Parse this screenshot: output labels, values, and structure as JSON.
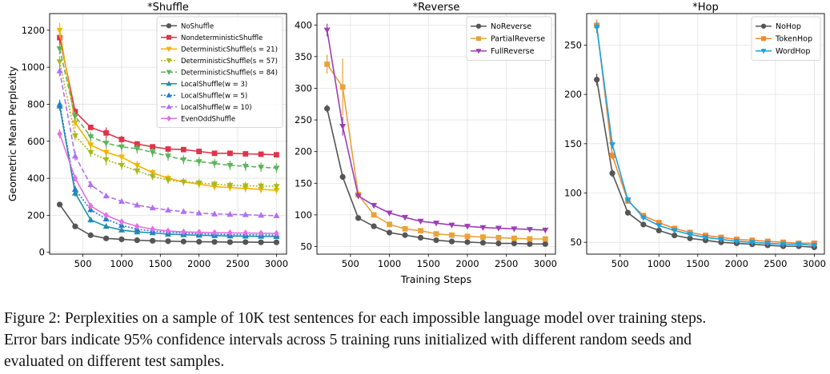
{
  "figure": {
    "xlabel": "Training Steps"
  },
  "caption": {
    "lines": [
      "Figure 2: Perplexities on a sample of 10K test sentences for each impossible language model over training steps.",
      "Error bars indicate 95% confidence intervals across 5 training runs initialized with different random seeds and",
      "evaluated on different test samples."
    ]
  },
  "chart_data": [
    {
      "type": "line",
      "title": "*Shuffle",
      "xlabel": "",
      "ylabel": "Geometric Mean Perplexity",
      "xlim": [
        70,
        3130
      ],
      "ylim": [
        -10,
        1290
      ],
      "xticks": [
        500,
        1000,
        1500,
        2000,
        2500,
        3000
      ],
      "yticks": [
        0,
        200,
        400,
        600,
        800,
        1000,
        1200
      ],
      "legend_position": "top-right",
      "x": [
        200,
        400,
        600,
        800,
        1000,
        1200,
        1400,
        1600,
        1800,
        2000,
        2200,
        2400,
        2600,
        2800,
        3000
      ],
      "series": [
        {
          "name": "NoShuffle",
          "color": "#555555",
          "marker": "circle",
          "dash": "",
          "values": [
            258,
            140,
            92,
            75,
            70,
            65,
            62,
            60,
            58,
            57,
            56,
            55,
            55,
            54,
            54
          ],
          "err": [
            8,
            5,
            4,
            3,
            3,
            3,
            2,
            2,
            2,
            2,
            2,
            2,
            2,
            2,
            2
          ]
        },
        {
          "name": "NondeterministicShuffle",
          "color": "#e0334b",
          "marker": "square",
          "dash": "",
          "values": [
            1160,
            760,
            675,
            645,
            610,
            585,
            570,
            558,
            555,
            545,
            535,
            535,
            532,
            530,
            527
          ],
          "err": [
            40,
            20,
            15,
            30,
            20,
            15,
            10,
            10,
            10,
            15,
            10,
            10,
            10,
            10,
            10
          ]
        },
        {
          "name": "DeterministicShuffle(s = 21)",
          "color": "#f4b400",
          "marker": "triangle-down",
          "dash": "",
          "values": [
            1200,
            700,
            580,
            540,
            515,
            470,
            430,
            400,
            380,
            368,
            355,
            350,
            345,
            340,
            335
          ],
          "err": [
            40,
            30,
            25,
            25,
            30,
            25,
            20,
            20,
            20,
            20,
            20,
            20,
            20,
            20,
            20
          ]
        },
        {
          "name": "DeterministicShuffle(s = 57)",
          "color": "#a8b820",
          "marker": "triangle-down",
          "dash": "2,2",
          "values": [
            1030,
            630,
            540,
            500,
            470,
            440,
            410,
            390,
            380,
            375,
            368,
            362,
            360,
            358,
            356
          ],
          "err": [
            30,
            25,
            25,
            30,
            25,
            20,
            20,
            20,
            20,
            20,
            20,
            20,
            20,
            20,
            20
          ]
        },
        {
          "name": "DeterministicShuffle(s = 84)",
          "color": "#5bb55a",
          "marker": "triangle-down",
          "dash": "6,3",
          "values": [
            1100,
            735,
            625,
            590,
            570,
            560,
            540,
            520,
            500,
            490,
            480,
            470,
            465,
            460,
            455
          ],
          "err": [
            30,
            25,
            25,
            25,
            25,
            25,
            25,
            25,
            25,
            25,
            25,
            25,
            25,
            25,
            25
          ]
        },
        {
          "name": "LocalShuffle(w = 3)",
          "color": "#1f8fa8",
          "marker": "triangle-up",
          "dash": "",
          "values": [
            790,
            320,
            175,
            140,
            120,
            110,
            105,
            98,
            95,
            92,
            90,
            88,
            87,
            86,
            85
          ],
          "err": [
            25,
            20,
            15,
            10,
            8,
            6,
            5,
            5,
            5,
            5,
            5,
            5,
            5,
            5,
            5
          ]
        },
        {
          "name": "LocalShuffle(w = 5)",
          "color": "#1f7fd0",
          "marker": "triangle-up",
          "dash": "2,2",
          "values": [
            800,
            340,
            230,
            180,
            145,
            125,
            115,
            108,
            104,
            100,
            98,
            96,
            95,
            94,
            93
          ],
          "err": [
            25,
            20,
            15,
            10,
            8,
            6,
            5,
            5,
            5,
            5,
            5,
            5,
            5,
            5,
            5
          ]
        },
        {
          "name": "LocalShuffle(w = 10)",
          "color": "#b071f0",
          "marker": "triangle-up",
          "dash": "6,3",
          "values": [
            980,
            520,
            365,
            305,
            275,
            255,
            240,
            228,
            220,
            212,
            207,
            205,
            203,
            200,
            198
          ],
          "err": [
            30,
            25,
            20,
            15,
            12,
            10,
            8,
            8,
            8,
            8,
            8,
            8,
            8,
            8,
            8
          ]
        },
        {
          "name": "EvenOddShuffle",
          "color": "#e36fe3",
          "marker": "diamond",
          "dash": "",
          "values": [
            640,
            400,
            250,
            200,
            165,
            140,
            125,
            115,
            110,
            108,
            106,
            105,
            104,
            103,
            102
          ],
          "err": [
            25,
            20,
            15,
            10,
            8,
            6,
            5,
            5,
            5,
            5,
            5,
            5,
            5,
            5,
            5
          ]
        }
      ]
    },
    {
      "type": "line",
      "title": "*Reverse",
      "xlabel": "Training Steps",
      "ylabel": "",
      "xlim": [
        70,
        3130
      ],
      "ylim": [
        38,
        418
      ],
      "xticks": [
        500,
        1000,
        1500,
        2000,
        2500,
        3000
      ],
      "yticks": [
        50,
        100,
        150,
        200,
        250,
        300,
        350,
        400
      ],
      "legend_position": "top-right",
      "x": [
        200,
        400,
        600,
        800,
        1000,
        1200,
        1400,
        1600,
        1800,
        2000,
        2200,
        2400,
        2600,
        2800,
        3000
      ],
      "series": [
        {
          "name": "NoReverse",
          "color": "#555555",
          "marker": "circle",
          "dash": "",
          "values": [
            268,
            160,
            95,
            82,
            72,
            68,
            64,
            60,
            58,
            57,
            56,
            55,
            55,
            54,
            54
          ],
          "err": [
            6,
            5,
            3,
            3,
            2,
            2,
            2,
            2,
            2,
            2,
            2,
            2,
            2,
            2,
            2
          ]
        },
        {
          "name": "PartialReverse",
          "color": "#eaa23a",
          "marker": "square",
          "dash": "",
          "values": [
            338,
            302,
            132,
            100,
            85,
            78,
            75,
            70,
            68,
            66,
            65,
            64,
            63,
            62,
            62
          ],
          "err": [
            15,
            45,
            6,
            4,
            3,
            3,
            3,
            3,
            3,
            3,
            3,
            3,
            3,
            3,
            3
          ]
        },
        {
          "name": "FullReverse",
          "color": "#9c3fb5",
          "marker": "triangle-down",
          "dash": "",
          "values": [
            392,
            240,
            130,
            115,
            103,
            96,
            90,
            87,
            84,
            82,
            80,
            79,
            78,
            77,
            76
          ],
          "err": [
            10,
            15,
            5,
            4,
            3,
            3,
            3,
            3,
            3,
            3,
            3,
            3,
            3,
            3,
            3
          ]
        }
      ]
    },
    {
      "type": "line",
      "title": "*Hop",
      "xlabel": "",
      "ylabel": "",
      "xlim": [
        70,
        3130
      ],
      "ylim": [
        38,
        282
      ],
      "xticks": [
        500,
        1000,
        1500,
        2000,
        2500,
        3000
      ],
      "yticks": [
        50,
        100,
        150,
        200,
        250
      ],
      "legend_position": "top-right",
      "x": [
        200,
        400,
        600,
        800,
        1000,
        1200,
        1400,
        1600,
        1800,
        2000,
        2200,
        2400,
        2600,
        2800,
        3000
      ],
      "series": [
        {
          "name": "NoHop",
          "color": "#555555",
          "marker": "circle",
          "dash": "",
          "values": [
            215,
            120,
            80,
            68,
            62,
            57,
            54,
            52,
            50,
            49,
            48,
            47,
            46,
            46,
            45
          ],
          "err": [
            6,
            4,
            3,
            2,
            2,
            2,
            2,
            2,
            2,
            2,
            2,
            2,
            2,
            2,
            2
          ]
        },
        {
          "name": "TokenHop",
          "color": "#f58a2e",
          "marker": "square",
          "dash": "",
          "values": [
            270,
            138,
            92,
            77,
            70,
            64,
            60,
            57,
            55,
            53,
            52,
            51,
            50,
            49,
            49
          ],
          "err": [
            6,
            4,
            3,
            2,
            2,
            2,
            2,
            2,
            2,
            2,
            2,
            2,
            2,
            2,
            2
          ]
        },
        {
          "name": "WordHop",
          "color": "#1aa3e0",
          "marker": "triangle-down",
          "dash": "",
          "values": [
            268,
            149,
            93,
            75,
            67,
            62,
            58,
            55,
            53,
            51,
            50,
            49,
            48,
            48,
            47
          ],
          "err": [
            6,
            4,
            3,
            2,
            2,
            2,
            2,
            2,
            2,
            2,
            2,
            2,
            2,
            2,
            2
          ]
        }
      ]
    }
  ]
}
